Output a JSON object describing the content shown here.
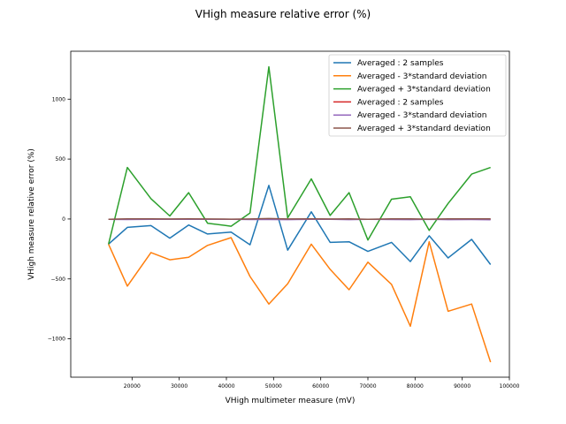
{
  "chart_data": {
    "type": "line",
    "title": "VHigh measure relative error (%)",
    "xlabel": "VHigh multimeter measure (mV)",
    "ylabel": "VHigh measure relative error (%)",
    "xlim": [
      7000,
      100000
    ],
    "ylim": [
      -1320,
      1400
    ],
    "xticks": [
      20000,
      30000,
      40000,
      50000,
      60000,
      70000,
      80000,
      90000,
      100000
    ],
    "yticks": [
      -1000,
      -500,
      0,
      500,
      1000
    ],
    "grid": false,
    "legend_position": "top-right",
    "x": [
      15000,
      19000,
      24000,
      28000,
      32000,
      36000,
      41000,
      45000,
      49000,
      53000,
      58000,
      62000,
      66000,
      70000,
      75000,
      79000,
      83000,
      87000,
      92000,
      96000
    ],
    "series": [
      {
        "name": "Averaged : 2 samples",
        "color": "#1f77b4",
        "values": [
          -210,
          -70,
          -55,
          -160,
          -50,
          -125,
          -110,
          -215,
          280,
          -260,
          60,
          -195,
          -190,
          -270,
          -195,
          -355,
          -140,
          -325,
          -170,
          -380
        ]
      },
      {
        "name": "Averaged - 3*standard deviation",
        "color": "#ff7f0e",
        "values": [
          -210,
          -560,
          -280,
          -340,
          -320,
          -220,
          -155,
          -480,
          -710,
          -540,
          -210,
          -420,
          -590,
          -360,
          -545,
          -895,
          -190,
          -770,
          -710,
          -1195
        ]
      },
      {
        "name": "Averaged + 3*standard deviation",
        "color": "#2ca02c",
        "values": [
          -210,
          430,
          170,
          25,
          220,
          -35,
          -60,
          50,
          1270,
          10,
          335,
          30,
          220,
          -175,
          165,
          185,
          -95,
          130,
          375,
          430
        ]
      },
      {
        "name": "Averaged : 2 samples",
        "color": "#d62728",
        "values": [
          -3,
          -1,
          -2,
          -2,
          -1,
          -2,
          -2,
          -2,
          0,
          -3,
          -1,
          -2,
          -2,
          -3,
          -2,
          -3,
          -2,
          -3,
          -2,
          -3
        ]
      },
      {
        "name": "Averaged - 3*standard deviation",
        "color": "#9467bd",
        "values": [
          -3,
          -4,
          -3,
          -3,
          -3,
          -3,
          -2,
          -4,
          -4,
          -5,
          -3,
          -3,
          -5,
          -3,
          -4,
          -5,
          -2,
          -5,
          -4,
          -6
        ]
      },
      {
        "name": "Averaged + 3*standard deviation",
        "color": "#8c564b",
        "values": [
          -3,
          2,
          1,
          0,
          1,
          0,
          -1,
          0,
          4,
          0,
          2,
          0,
          1,
          -2,
          1,
          1,
          -1,
          1,
          2,
          2
        ]
      }
    ]
  }
}
